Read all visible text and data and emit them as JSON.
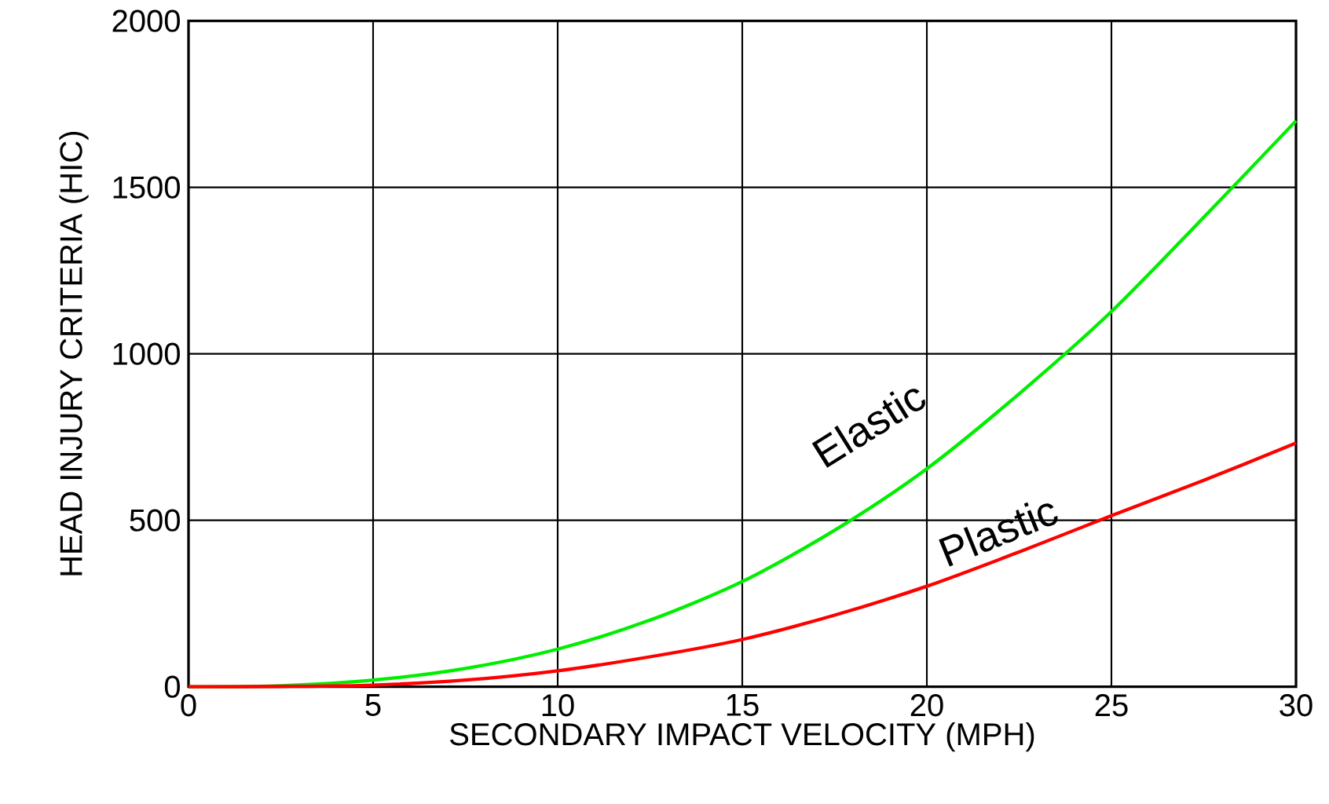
{
  "chart_data": {
    "type": "line",
    "xlabel": "SECONDARY IMPACT VELOCITY  (MPH)",
    "ylabel": "HEAD INJURY CRITERIA (HIC)",
    "x": [
      0,
      2.5,
      5,
      7.5,
      10,
      12.5,
      15,
      17.5,
      20,
      22.5,
      25,
      27.5,
      30
    ],
    "series": [
      {
        "name": "Elastic",
        "color": "#00ee00",
        "values": [
          0,
          3,
          20,
          55,
          113,
          200,
          316,
          470,
          655,
          880,
          1127,
          1410,
          1700
        ]
      },
      {
        "name": "Plastic",
        "color": "#ff0000",
        "values": [
          0,
          1,
          5,
          20,
          48,
          90,
          142,
          215,
          302,
          405,
          514,
          620,
          732
        ]
      }
    ],
    "xlim": [
      0,
      30
    ],
    "ylim": [
      0,
      2000
    ],
    "xticks": [
      0,
      5,
      10,
      15,
      20,
      25,
      30
    ],
    "yticks": [
      0,
      500,
      1000,
      1500,
      2000
    ],
    "grid": true,
    "marker": "none",
    "line_style": "solid"
  }
}
